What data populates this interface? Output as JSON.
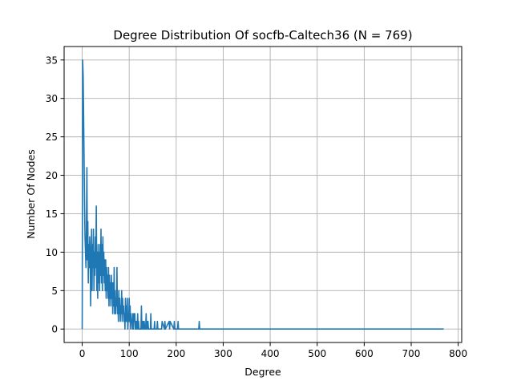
{
  "chart_data": {
    "type": "line",
    "title": "Degree Distribution Of socfb-Caltech36 (N = 769)",
    "xlabel": "Degree",
    "ylabel": "Number Of Nodes",
    "xlim": [
      -38.45,
      807.45
    ],
    "ylim": [
      -1.75,
      36.75
    ],
    "xticks": [
      0,
      100,
      200,
      300,
      400,
      500,
      600,
      700,
      800
    ],
    "xtick_labels": [
      "0",
      "100",
      "200",
      "300",
      "400",
      "500",
      "600",
      "700",
      "800"
    ],
    "yticks": [
      0,
      5,
      10,
      15,
      20,
      25,
      30,
      35
    ],
    "ytick_labels": [
      "0",
      "5",
      "10",
      "15",
      "20",
      "25",
      "30",
      "35"
    ],
    "grid": true,
    "color": "#1f77b4",
    "series": [
      {
        "x": [
          0,
          1,
          2,
          3,
          4,
          5,
          6,
          7,
          8,
          9,
          10,
          11,
          12,
          13,
          14,
          15,
          16,
          17,
          18,
          19,
          20,
          21,
          22,
          23,
          24,
          25,
          26,
          27,
          28,
          29,
          30,
          31,
          32,
          33,
          34,
          35,
          36,
          37,
          38,
          39,
          40,
          41,
          42,
          43,
          44,
          45,
          46,
          47,
          48,
          49,
          50,
          51,
          52,
          53,
          54,
          55,
          56,
          57,
          58,
          59,
          60,
          61,
          62,
          63,
          64,
          65,
          66,
          67,
          68,
          69,
          70,
          71,
          72,
          73,
          74,
          75,
          76,
          77,
          78,
          79,
          80,
          81,
          82,
          83,
          84,
          85,
          86,
          87,
          88,
          89,
          90,
          91,
          92,
          93,
          94,
          95,
          96,
          97,
          98,
          99,
          100,
          101,
          102,
          103,
          104,
          105,
          106,
          107,
          108,
          109,
          110,
          111,
          112,
          113,
          114,
          115,
          116,
          117,
          118,
          119,
          120,
          121,
          122,
          123,
          124,
          125,
          126,
          127,
          128,
          129,
          130,
          131,
          132,
          133,
          134,
          135,
          136,
          137,
          138,
          139,
          140,
          141,
          142,
          143,
          144,
          145,
          146,
          147,
          148,
          149,
          150,
          151,
          152,
          153,
          154,
          155,
          156,
          157,
          158,
          159,
          160,
          161,
          162,
          163,
          164,
          165,
          166,
          167,
          168,
          169,
          170,
          175,
          176,
          177,
          185,
          186,
          187,
          195,
          196,
          197,
          203,
          204,
          205,
          248,
          249,
          250,
          769
        ],
        "y": [
          0,
          35,
          33,
          28,
          22,
          16,
          12,
          10,
          8,
          13,
          21,
          9,
          14,
          6,
          11,
          8,
          12,
          10,
          3,
          9,
          13,
          5,
          11,
          8,
          13,
          5,
          10,
          7,
          12,
          8,
          16,
          5,
          10,
          4,
          11,
          6,
          10,
          5,
          11,
          7,
          13,
          6,
          11,
          5,
          12,
          7,
          10,
          6,
          9,
          5,
          9,
          4,
          8,
          5,
          7,
          4,
          8,
          3,
          7,
          4,
          6,
          3,
          7,
          4,
          6,
          2,
          6,
          3,
          8,
          2,
          5,
          2,
          4,
          3,
          8,
          2,
          4,
          1,
          5,
          2,
          4,
          1,
          3,
          2,
          5,
          1,
          4,
          2,
          3,
          1,
          2,
          0,
          4,
          1,
          3,
          1,
          4,
          0,
          2,
          1,
          4,
          1,
          3,
          0,
          2,
          1,
          1,
          0,
          2,
          0,
          2,
          1,
          2,
          0,
          1,
          0,
          1,
          0,
          2,
          0,
          1,
          0,
          0,
          0,
          0,
          0,
          3,
          0,
          1,
          0,
          1,
          0,
          1,
          0,
          0,
          0,
          2,
          0,
          1,
          0,
          1,
          0,
          0,
          0,
          0,
          0,
          2,
          0,
          0,
          0,
          0,
          0,
          0,
          0,
          1,
          0,
          0,
          0,
          0,
          0,
          1,
          0,
          0,
          0,
          0,
          0,
          0,
          0,
          0,
          0,
          1,
          0,
          1,
          0,
          1,
          0,
          1,
          0,
          1,
          0,
          0,
          1,
          0,
          0,
          1,
          0,
          0
        ]
      }
    ]
  }
}
